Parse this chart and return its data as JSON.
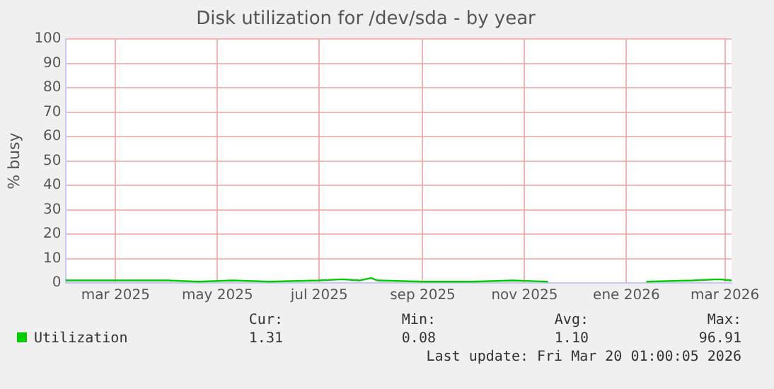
{
  "chart_data": {
    "type": "line",
    "title": "Disk utilization for /dev/sda - by year",
    "ylabel": "% busy",
    "xlim": [
      "2025-01-30",
      "2026-03-05"
    ],
    "xticks": [
      {
        "value": "2025-03-01",
        "label": "mar 2025"
      },
      {
        "value": "2025-05-01",
        "label": "may 2025"
      },
      {
        "value": "2025-07-01",
        "label": "jul 2025"
      },
      {
        "value": "2025-09-01",
        "label": "sep 2025"
      },
      {
        "value": "2025-11-01",
        "label": "nov 2025"
      },
      {
        "value": "2026-01-01",
        "label": "ene 2026"
      },
      {
        "value": "2026-03-01",
        "label": "mar 2026"
      }
    ],
    "ylim": [
      0,
      100
    ],
    "yticks": [
      0,
      10,
      20,
      30,
      40,
      50,
      60,
      70,
      80,
      90,
      100
    ],
    "grid": true,
    "legend": "bottom left",
    "marker": "none",
    "x": [
      "2025-01-30",
      "2025-02-20",
      "2025-03-10",
      "2025-04-01",
      "2025-04-20",
      "2025-05-10",
      "2025-06-01",
      "2025-07-01",
      "2025-07-15",
      "2025-07-25",
      "2025-08-01",
      "2025-08-05",
      "2025-09-01",
      "2025-10-01",
      "2025-10-25",
      "2025-11-15",
      "2025-11-16",
      "2026-01-13",
      "2026-02-10",
      "2026-02-25",
      "2026-03-05"
    ],
    "series": [
      {
        "name": "Utilization",
        "color": "#00cc00",
        "values": [
          1,
          1,
          1,
          1,
          0.5,
          1,
          0.5,
          1,
          1.5,
          1,
          2,
          1,
          0.5,
          0.5,
          1,
          0.5,
          null,
          0.5,
          1,
          1.5,
          1
        ]
      }
    ],
    "annotations": [
      "Cur:",
      "1.31",
      "Min:",
      "0.08",
      "Avg:",
      "1.10",
      "Max:",
      "96.91",
      "Last update: Fri Mar 20 01:00:05 2026"
    ]
  }
}
